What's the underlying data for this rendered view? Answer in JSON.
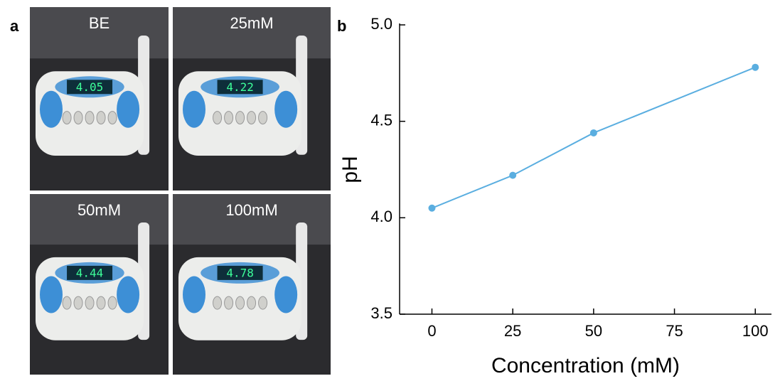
{
  "panel_labels": [
    "a",
    "b"
  ],
  "photos": [
    {
      "label": "BE",
      "display": "4.05"
    },
    {
      "label": "25mM",
      "display": "4.22"
    },
    {
      "label": "50mM",
      "display": "4.44"
    },
    {
      "label": "100mM",
      "display": "4.78"
    }
  ],
  "chart_data": {
    "type": "line",
    "x": [
      0,
      25,
      50,
      100
    ],
    "values": [
      4.05,
      4.22,
      4.44,
      4.78
    ],
    "color": "#5aaee0",
    "xlabel": "Concentration (mM)",
    "ylabel": "pH",
    "xlim": [
      -10,
      105
    ],
    "ylim": [
      3.5,
      5.0
    ],
    "xticks": [
      0,
      25,
      50,
      75,
      100
    ],
    "yticks": [
      {
        "value": 3.5,
        "label": "3.5"
      },
      {
        "value": 4,
        "label": "4.0"
      },
      {
        "value": 4.5,
        "label": "4.5"
      },
      {
        "value": 5,
        "label": "5.0"
      }
    ]
  }
}
